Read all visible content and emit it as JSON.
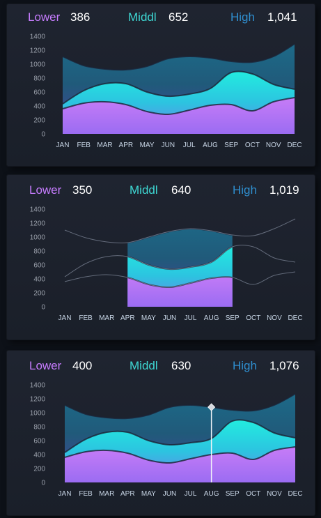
{
  "chart_data": [
    {
      "type": "area",
      "variant": "full",
      "categories": [
        "JAN",
        "FEB",
        "MAR",
        "APR",
        "MAY",
        "JUN",
        "JUL",
        "AUG",
        "SEP",
        "OCT",
        "NOV",
        "DEC"
      ],
      "ylim": [
        0,
        1400
      ],
      "yticks": [
        0,
        200,
        400,
        600,
        800,
        1000,
        1200,
        1400
      ],
      "header": {
        "lower_label": "Lower",
        "lower_value": "386",
        "middle_label": "Middl",
        "middle_value": "652",
        "high_label": "High",
        "high_value": "1,041"
      },
      "series": [
        {
          "name": "High",
          "values": [
            1110,
            980,
            930,
            920,
            970,
            1080,
            1110,
            1090,
            1040,
            1030,
            1110,
            1290
          ]
        },
        {
          "name": "Middl",
          "values": [
            430,
            620,
            720,
            720,
            600,
            540,
            570,
            650,
            880,
            860,
            710,
            640
          ]
        },
        {
          "name": "Lower",
          "values": [
            360,
            440,
            460,
            420,
            320,
            280,
            340,
            410,
            420,
            330,
            460,
            520
          ]
        }
      ]
    },
    {
      "type": "area",
      "variant": "range",
      "categories": [
        "JAN",
        "FEB",
        "MAR",
        "APR",
        "MAY",
        "JUN",
        "JUL",
        "AUG",
        "SEP",
        "OCT",
        "NOV",
        "DEC"
      ],
      "ylim": [
        0,
        1400
      ],
      "yticks": [
        0,
        200,
        400,
        600,
        800,
        1000,
        1200,
        1400
      ],
      "range": [
        "APR",
        "SEP"
      ],
      "header": {
        "lower_label": "Lower",
        "lower_value": "350",
        "middle_label": "Middl",
        "middle_value": "640",
        "high_label": "High",
        "high_value": "1,019"
      },
      "series": [
        {
          "name": "High",
          "values": [
            1100,
            990,
            930,
            920,
            1000,
            1080,
            1120,
            1090,
            1030,
            1020,
            1120,
            1260
          ]
        },
        {
          "name": "Middl",
          "values": [
            430,
            620,
            720,
            720,
            600,
            540,
            570,
            640,
            860,
            860,
            700,
            640
          ]
        },
        {
          "name": "Lower",
          "values": [
            360,
            430,
            460,
            420,
            320,
            280,
            340,
            410,
            420,
            320,
            450,
            500
          ]
        }
      ]
    },
    {
      "type": "area",
      "variant": "cursor",
      "categories": [
        "JAN",
        "FEB",
        "MAR",
        "APR",
        "MAY",
        "JUN",
        "JUL",
        "AUG",
        "SEP",
        "OCT",
        "NOV",
        "DEC"
      ],
      "ylim": [
        0,
        1400
      ],
      "yticks": [
        0,
        200,
        400,
        600,
        800,
        1000,
        1200,
        1400
      ],
      "cursor_x": 7.0,
      "header": {
        "lower_label": "Lower",
        "lower_value": "400",
        "middle_label": "Middl",
        "middle_value": "630",
        "high_label": "High",
        "high_value": "1,076"
      },
      "series": [
        {
          "name": "High",
          "values": [
            1110,
            980,
            930,
            920,
            970,
            1080,
            1110,
            1080,
            1040,
            1030,
            1110,
            1270
          ]
        },
        {
          "name": "Middl",
          "values": [
            430,
            620,
            720,
            720,
            600,
            540,
            570,
            630,
            880,
            860,
            710,
            640
          ]
        },
        {
          "name": "Lower",
          "values": [
            360,
            440,
            460,
            420,
            320,
            280,
            340,
            400,
            420,
            330,
            460,
            510
          ]
        }
      ]
    }
  ]
}
